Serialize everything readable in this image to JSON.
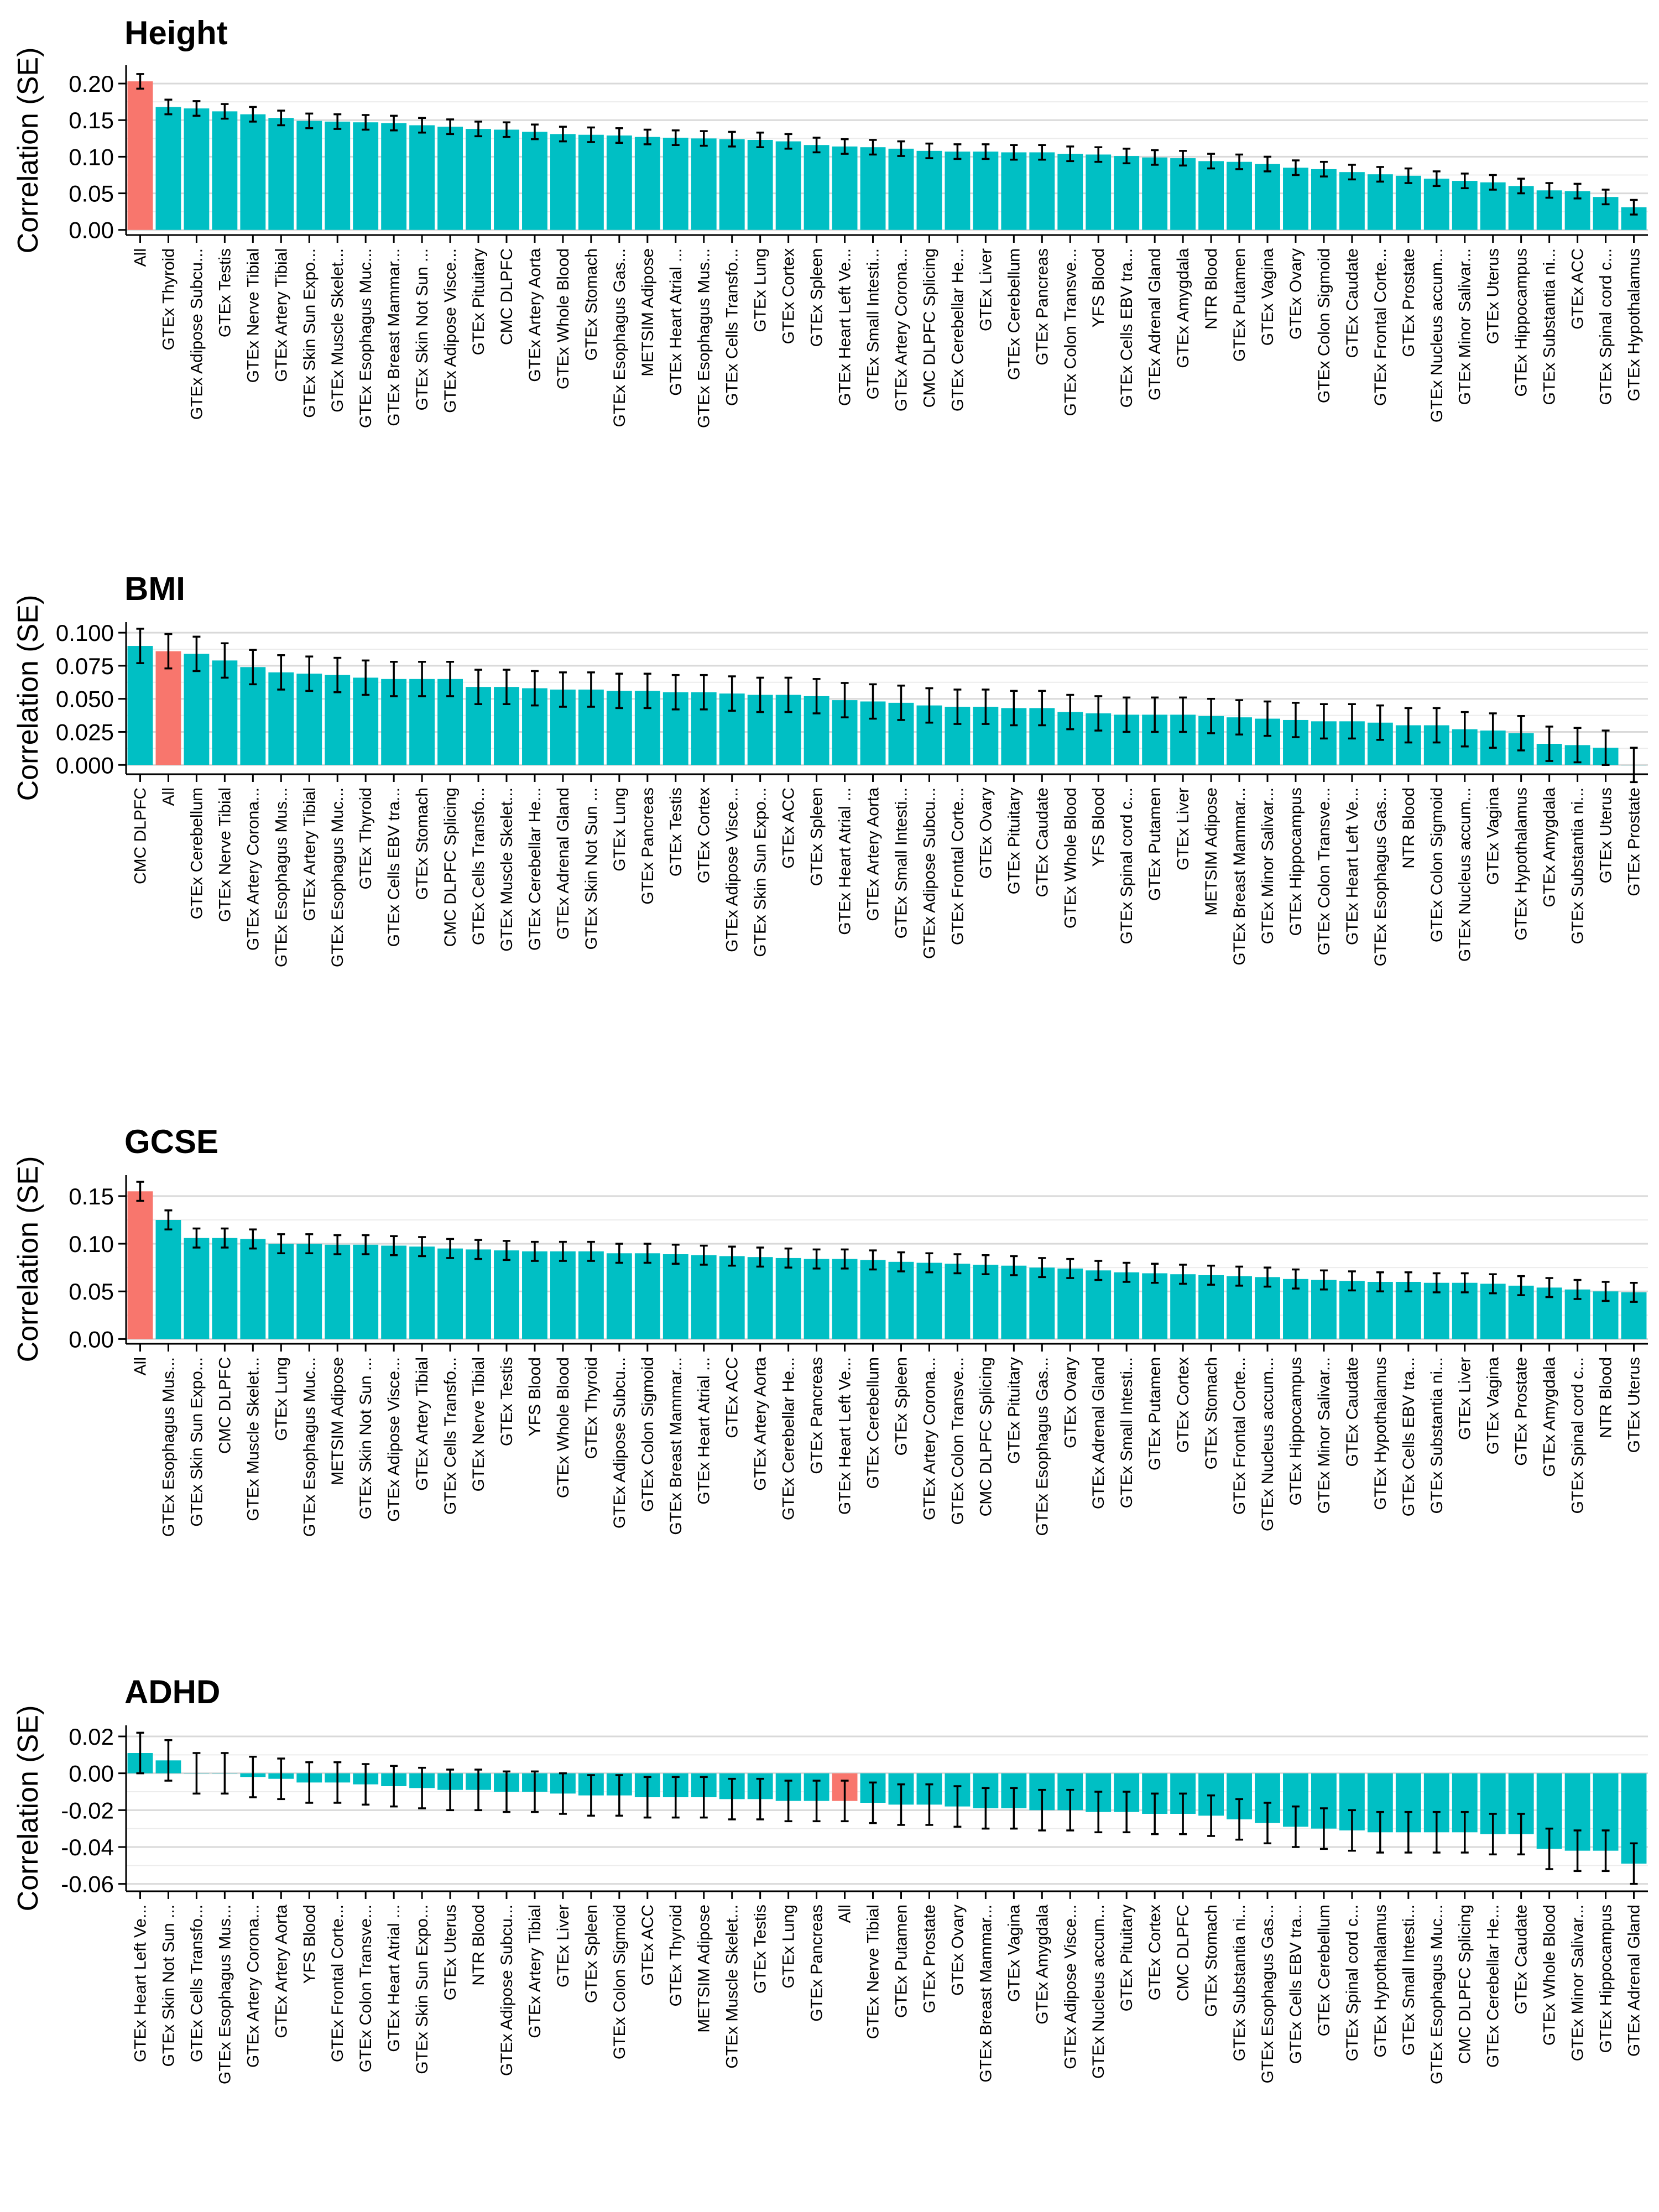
{
  "colors": {
    "highlight": "#F8766D",
    "bar": "#00BFC4",
    "error_bar": "#000000",
    "grid": "#d9d9d9"
  },
  "chart_data": [
    {
      "type": "bar",
      "title": "Height",
      "ylabel": "Correlation (SE)",
      "ylim": [
        -0.007,
        0.225
      ],
      "yticks": [
        0.0,
        0.05,
        0.1,
        0.15,
        0.2
      ],
      "ytick_labels": [
        "0.00",
        "0.05",
        "0.10",
        "0.15",
        "0.20"
      ],
      "highlight": "All",
      "categories": [
        "All",
        "GTEx Thyroid",
        "GTEx Adipose Subcu...",
        "GTEx Testis",
        "GTEx Nerve Tibial",
        "GTEx Artery Tibial",
        "GTEx Skin Sun Expo...",
        "GTEx Muscle Skelet...",
        "GTEx Esophagus Muc...",
        "GTEx Breast Mammar...",
        "GTEx Skin Not Sun ...",
        "GTEx Adipose Visce...",
        "GTEx Pituitary",
        "CMC DLPFC",
        "GTEx Artery Aorta",
        "GTEx Whole Blood",
        "GTEx Stomach",
        "GTEx Esophagus Gas...",
        "METSIM Adipose",
        "GTEx Heart Atrial ...",
        "GTEx Esophagus Mus...",
        "GTEx Cells Transfo...",
        "GTEx Lung",
        "GTEx Cortex",
        "GTEx Spleen",
        "GTEx Heart Left Ve...",
        "GTEx Small Intesti...",
        "GTEx Artery Corona...",
        "CMC DLPFC Splicing",
        "GTEx Cerebellar He...",
        "GTEx Liver",
        "GTEx Cerebellum",
        "GTEx Pancreas",
        "GTEx Colon Transve...",
        "YFS Blood",
        "GTEx Cells EBV tra...",
        "GTEx Adrenal Gland",
        "GTEx Amygdala",
        "NTR Blood",
        "GTEx Putamen",
        "GTEx Vagina",
        "GTEx Ovary",
        "GTEx Colon Sigmoid",
        "GTEx Caudate",
        "GTEx Frontal Corte...",
        "GTEx Prostate",
        "GTEx Nucleus accum...",
        "GTEx Minor Salivar...",
        "GTEx Uterus",
        "GTEx Hippocampus",
        "GTEx Substantia ni...",
        "GTEx ACC",
        "GTEx Spinal cord c...",
        "GTEx Hypothalamus"
      ],
      "values": [
        0.203,
        0.168,
        0.166,
        0.162,
        0.158,
        0.153,
        0.149,
        0.148,
        0.147,
        0.146,
        0.143,
        0.141,
        0.138,
        0.137,
        0.134,
        0.131,
        0.13,
        0.129,
        0.127,
        0.126,
        0.125,
        0.124,
        0.123,
        0.121,
        0.116,
        0.114,
        0.113,
        0.111,
        0.108,
        0.107,
        0.107,
        0.106,
        0.106,
        0.104,
        0.103,
        0.101,
        0.099,
        0.098,
        0.094,
        0.093,
        0.09,
        0.085,
        0.083,
        0.079,
        0.076,
        0.074,
        0.07,
        0.067,
        0.065,
        0.06,
        0.054,
        0.053,
        0.045,
        0.031
      ],
      "errors": [
        0.01,
        0.01,
        0.01,
        0.01,
        0.01,
        0.01,
        0.01,
        0.01,
        0.01,
        0.01,
        0.01,
        0.01,
        0.01,
        0.01,
        0.01,
        0.01,
        0.01,
        0.01,
        0.01,
        0.01,
        0.01,
        0.01,
        0.01,
        0.01,
        0.01,
        0.01,
        0.01,
        0.01,
        0.01,
        0.01,
        0.01,
        0.01,
        0.01,
        0.01,
        0.01,
        0.01,
        0.01,
        0.01,
        0.01,
        0.01,
        0.01,
        0.01,
        0.01,
        0.01,
        0.01,
        0.01,
        0.01,
        0.01,
        0.01,
        0.01,
        0.01,
        0.01,
        0.01,
        0.01
      ]
    },
    {
      "type": "bar",
      "title": "BMI",
      "ylabel": "Correlation (SE)",
      "ylim": [
        -0.007,
        0.108
      ],
      "yticks": [
        0.0,
        0.025,
        0.05,
        0.075,
        0.1
      ],
      "ytick_labels": [
        "0.000",
        "0.025",
        "0.050",
        "0.075",
        "0.100"
      ],
      "highlight": "All",
      "categories": [
        "CMC DLPFC",
        "All",
        "GTEx Cerebellum",
        "GTEx Nerve Tibial",
        "GTEx Artery Corona...",
        "GTEx Esophagus Mus...",
        "GTEx Artery Tibial",
        "GTEx Esophagus Muc...",
        "GTEx Thyroid",
        "GTEx Cells EBV tra...",
        "GTEx Stomach",
        "CMC DLPFC Splicing",
        "GTEx Cells Transfo...",
        "GTEx Muscle Skelet...",
        "GTEx Cerebellar He...",
        "GTEx Adrenal Gland",
        "GTEx Skin Not Sun ...",
        "GTEx Lung",
        "GTEx Pancreas",
        "GTEx Testis",
        "GTEx Cortex",
        "GTEx Adipose Visce...",
        "GTEx Skin Sun Expo...",
        "GTEx ACC",
        "GTEx Spleen",
        "GTEx Heart Atrial ...",
        "GTEx Artery Aorta",
        "GTEx Small Intesti...",
        "GTEx Adipose Subcu...",
        "GTEx Frontal Corte...",
        "GTEx Ovary",
        "GTEx Pituitary",
        "GTEx Caudate",
        "GTEx Whole Blood",
        "YFS Blood",
        "GTEx Spinal cord c...",
        "GTEx Putamen",
        "GTEx Liver",
        "METSIM Adipose",
        "GTEx Breast Mammar...",
        "GTEx Minor Salivar...",
        "GTEx Hippocampus",
        "GTEx Colon Transve...",
        "GTEx Heart Left Ve...",
        "GTEx Esophagus Gas...",
        "NTR Blood",
        "GTEx Colon Sigmoid",
        "GTEx Nucleus accum...",
        "GTEx Vagina",
        "GTEx Hypothalamus",
        "GTEx Amygdala",
        "GTEx Substantia ni...",
        "GTEx Uterus",
        "GTEx Prostate"
      ],
      "values": [
        0.09,
        0.086,
        0.084,
        0.079,
        0.074,
        0.07,
        0.069,
        0.068,
        0.066,
        0.065,
        0.065,
        0.065,
        0.059,
        0.059,
        0.058,
        0.057,
        0.057,
        0.056,
        0.056,
        0.055,
        0.055,
        0.054,
        0.053,
        0.053,
        0.052,
        0.049,
        0.048,
        0.047,
        0.045,
        0.044,
        0.044,
        0.043,
        0.043,
        0.04,
        0.039,
        0.038,
        0.038,
        0.038,
        0.037,
        0.036,
        0.035,
        0.034,
        0.033,
        0.033,
        0.032,
        0.03,
        0.03,
        0.027,
        0.026,
        0.024,
        0.016,
        0.015,
        0.013,
        0.0
      ],
      "errors": [
        0.013,
        0.013,
        0.013,
        0.013,
        0.013,
        0.013,
        0.013,
        0.013,
        0.013,
        0.013,
        0.013,
        0.013,
        0.013,
        0.013,
        0.013,
        0.013,
        0.013,
        0.013,
        0.013,
        0.013,
        0.013,
        0.013,
        0.013,
        0.013,
        0.013,
        0.013,
        0.013,
        0.013,
        0.013,
        0.013,
        0.013,
        0.013,
        0.013,
        0.013,
        0.013,
        0.013,
        0.013,
        0.013,
        0.013,
        0.013,
        0.013,
        0.013,
        0.013,
        0.013,
        0.013,
        0.013,
        0.013,
        0.013,
        0.013,
        0.013,
        0.013,
        0.013,
        0.013,
        0.013
      ]
    },
    {
      "type": "bar",
      "title": "GCSE",
      "ylabel": "Correlation (SE)",
      "ylim": [
        -0.005,
        0.172
      ],
      "yticks": [
        0.0,
        0.05,
        0.1,
        0.15
      ],
      "ytick_labels": [
        "0.00",
        "0.05",
        "0.10",
        "0.15"
      ],
      "highlight": "All",
      "categories": [
        "All",
        "GTEx Esophagus Mus...",
        "GTEx Skin Sun Expo...",
        "CMC DLPFC",
        "GTEx Muscle Skelet...",
        "GTEx Lung",
        "GTEx Esophagus Muc...",
        "METSIM Adipose",
        "GTEx Skin Not Sun ...",
        "GTEx Adipose Visce...",
        "GTEx Artery Tibial",
        "GTEx Cells Transfo...",
        "GTEx Nerve Tibial",
        "GTEx Testis",
        "YFS Blood",
        "GTEx Whole Blood",
        "GTEx Thyroid",
        "GTEx Adipose Subcu...",
        "GTEx Colon Sigmoid",
        "GTEx Breast Mammar...",
        "GTEx Heart Atrial ...",
        "GTEx ACC",
        "GTEx Artery Aorta",
        "GTEx Cerebellar He...",
        "GTEx Pancreas",
        "GTEx Heart Left Ve...",
        "GTEx Cerebellum",
        "GTEx Spleen",
        "GTEx Artery Corona...",
        "GTEx Colon Transve...",
        "CMC DLPFC Splicing",
        "GTEx Pituitary",
        "GTEx Esophagus Gas...",
        "GTEx Ovary",
        "GTEx Adrenal Gland",
        "GTEx Small Intesti...",
        "GTEx Putamen",
        "GTEx Cortex",
        "GTEx Stomach",
        "GTEx Frontal Corte...",
        "GTEx Nucleus accum...",
        "GTEx Hippocampus",
        "GTEx Minor Salivar...",
        "GTEx Caudate",
        "GTEx Hypothalamus",
        "GTEx Cells EBV tra...",
        "GTEx Substantia ni...",
        "GTEx Liver",
        "GTEx Vagina",
        "GTEx Prostate",
        "GTEx Amygdala",
        "GTEx Spinal cord c...",
        "NTR Blood",
        "GTEx Uterus"
      ],
      "values": [
        0.155,
        0.125,
        0.106,
        0.106,
        0.105,
        0.1,
        0.1,
        0.099,
        0.099,
        0.098,
        0.097,
        0.095,
        0.094,
        0.093,
        0.092,
        0.092,
        0.092,
        0.09,
        0.09,
        0.089,
        0.088,
        0.087,
        0.086,
        0.085,
        0.084,
        0.084,
        0.083,
        0.081,
        0.08,
        0.079,
        0.078,
        0.077,
        0.075,
        0.074,
        0.072,
        0.07,
        0.069,
        0.068,
        0.067,
        0.066,
        0.065,
        0.063,
        0.062,
        0.061,
        0.06,
        0.06,
        0.059,
        0.059,
        0.058,
        0.056,
        0.054,
        0.052,
        0.05,
        0.049
      ],
      "errors": [
        0.01,
        0.01,
        0.01,
        0.01,
        0.01,
        0.01,
        0.01,
        0.01,
        0.01,
        0.01,
        0.01,
        0.01,
        0.01,
        0.01,
        0.01,
        0.01,
        0.01,
        0.01,
        0.01,
        0.01,
        0.01,
        0.01,
        0.01,
        0.01,
        0.01,
        0.01,
        0.01,
        0.01,
        0.01,
        0.01,
        0.01,
        0.01,
        0.01,
        0.01,
        0.01,
        0.01,
        0.01,
        0.01,
        0.01,
        0.01,
        0.01,
        0.01,
        0.01,
        0.01,
        0.01,
        0.01,
        0.01,
        0.01,
        0.01,
        0.01,
        0.01,
        0.01,
        0.01,
        0.01
      ]
    },
    {
      "type": "bar",
      "title": "ADHD",
      "ylabel": "Correlation (SE)",
      "ylim": [
        -0.064,
        0.026
      ],
      "yticks": [
        -0.06,
        -0.04,
        -0.02,
        0.0,
        0.02
      ],
      "ytick_labels": [
        "-0.06",
        "-0.04",
        "-0.02",
        "0.00",
        "0.02"
      ],
      "highlight": "All",
      "categories": [
        "GTEx Heart Left Ve...",
        "GTEx Skin Not Sun ...",
        "GTEx Cells Transfo...",
        "GTEx Esophagus Mus...",
        "GTEx Artery Corona...",
        "GTEx Artery Aorta",
        "YFS Blood",
        "GTEx Frontal Corte...",
        "GTEx Colon Transve...",
        "GTEx Heart Atrial ...",
        "GTEx Skin Sun Expo...",
        "GTEx Uterus",
        "NTR Blood",
        "GTEx Adipose Subcu...",
        "GTEx Artery Tibial",
        "GTEx Liver",
        "GTEx Spleen",
        "GTEx Colon Sigmoid",
        "GTEx ACC",
        "GTEx Thyroid",
        "METSIM Adipose",
        "GTEx Muscle Skelet...",
        "GTEx Testis",
        "GTEx Lung",
        "GTEx Pancreas",
        "All",
        "GTEx Nerve Tibial",
        "GTEx Putamen",
        "GTEx Prostate",
        "GTEx Ovary",
        "GTEx Breast Mammar...",
        "GTEx Vagina",
        "GTEx Amygdala",
        "GTEx Adipose Visce...",
        "GTEx Nucleus accum...",
        "GTEx Pituitary",
        "GTEx Cortex",
        "CMC DLPFC",
        "GTEx Stomach",
        "GTEx Substantia ni...",
        "GTEx Esophagus Gas...",
        "GTEx Cells EBV tra...",
        "GTEx Cerebellum",
        "GTEx Spinal cord c...",
        "GTEx Hypothalamus",
        "GTEx Small Intesti...",
        "GTEx Esophagus Muc...",
        "CMC DLPFC Splicing",
        "GTEx Cerebellar He...",
        "GTEx Caudate",
        "GTEx Whole Blood",
        "GTEx Minor Salivar...",
        "GTEx Hippocampus",
        "GTEx Adrenal Gland"
      ],
      "values": [
        0.011,
        0.007,
        0.0,
        0.0,
        -0.002,
        -0.003,
        -0.005,
        -0.005,
        -0.006,
        -0.007,
        -0.008,
        -0.009,
        -0.009,
        -0.01,
        -0.01,
        -0.011,
        -0.012,
        -0.012,
        -0.013,
        -0.013,
        -0.013,
        -0.014,
        -0.014,
        -0.015,
        -0.015,
        -0.015,
        -0.016,
        -0.017,
        -0.017,
        -0.018,
        -0.019,
        -0.019,
        -0.02,
        -0.02,
        -0.021,
        -0.021,
        -0.022,
        -0.022,
        -0.023,
        -0.025,
        -0.027,
        -0.029,
        -0.03,
        -0.031,
        -0.032,
        -0.032,
        -0.032,
        -0.032,
        -0.033,
        -0.033,
        -0.041,
        -0.042,
        -0.042,
        -0.049
      ],
      "errors": [
        0.011,
        0.011,
        0.011,
        0.011,
        0.011,
        0.011,
        0.011,
        0.011,
        0.011,
        0.011,
        0.011,
        0.011,
        0.011,
        0.011,
        0.011,
        0.011,
        0.011,
        0.011,
        0.011,
        0.011,
        0.011,
        0.011,
        0.011,
        0.011,
        0.011,
        0.011,
        0.011,
        0.011,
        0.011,
        0.011,
        0.011,
        0.011,
        0.011,
        0.011,
        0.011,
        0.011,
        0.011,
        0.011,
        0.011,
        0.011,
        0.011,
        0.011,
        0.011,
        0.011,
        0.011,
        0.011,
        0.011,
        0.011,
        0.011,
        0.011,
        0.011,
        0.011,
        0.011,
        0.011
      ]
    }
  ]
}
